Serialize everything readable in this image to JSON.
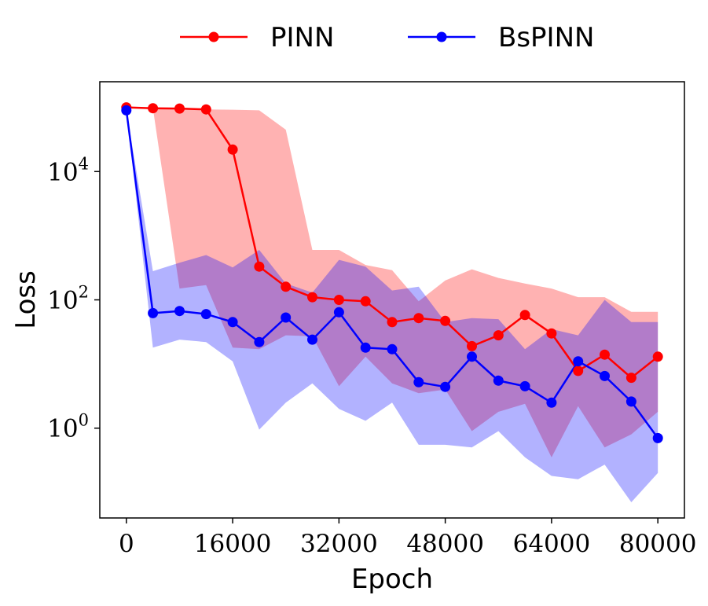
{
  "chart_data": {
    "type": "line",
    "xlabel": "Epoch",
    "ylabel": "Loss",
    "yscale": "log",
    "xlim": [
      -4000,
      84000
    ],
    "ylim_log10": [
      -1.4,
      5.4
    ],
    "x": [
      0,
      4000,
      8000,
      12000,
      16000,
      20000,
      24000,
      28000,
      32000,
      36000,
      40000,
      44000,
      48000,
      52000,
      56000,
      60000,
      64000,
      68000,
      72000,
      76000,
      80000
    ],
    "xticks": [
      {
        "value": 0,
        "label": "0"
      },
      {
        "value": 16000,
        "label": "16000"
      },
      {
        "value": 32000,
        "label": "32000"
      },
      {
        "value": 48000,
        "label": "48000"
      },
      {
        "value": 64000,
        "label": "64000"
      },
      {
        "value": 80000,
        "label": "80000"
      }
    ],
    "yticks": [
      {
        "exp": 0,
        "base": "10",
        "sup": "0"
      },
      {
        "exp": 2,
        "base": "10",
        "sup": "2"
      },
      {
        "exp": 4,
        "base": "10",
        "sup": "4"
      }
    ],
    "legend": {
      "placement": "top-center, outside plot"
    },
    "series": [
      {
        "name": "PINN",
        "color": "#ff0000",
        "band_color": "#ff0000",
        "band_opacity": 0.3,
        "values": [
          100000,
          97000,
          96000,
          93000,
          22000,
          330,
          160,
          110,
          100,
          95,
          45,
          52,
          47,
          19,
          28,
          58,
          30,
          7.8,
          14,
          6.1,
          13
        ],
        "lower": [
          100000,
          97000,
          150,
          170,
          18,
          17,
          28,
          27,
          4.5,
          13,
          5,
          3.5,
          4,
          0.9,
          1.8,
          2.4,
          0.35,
          2.2,
          0.5,
          0.8,
          1.8
        ],
        "upper": [
          100000,
          97000,
          96000,
          93000,
          92000,
          90000,
          45000,
          600,
          600,
          350,
          290,
          95,
          200,
          300,
          220,
          180,
          150,
          110,
          110,
          65,
          65
        ]
      },
      {
        "name": "BsPINN",
        "color": "#0000ff",
        "band_color": "#0000ff",
        "band_opacity": 0.3,
        "values": [
          90000,
          62,
          67,
          60,
          45,
          22,
          53,
          24,
          64,
          18,
          17,
          5.2,
          4.4,
          13,
          5.5,
          4.5,
          2.5,
          11,
          6.5,
          2.6,
          0.7
        ],
        "lower": [
          90000,
          18,
          24,
          22,
          11,
          0.95,
          2.5,
          5,
          2,
          1.3,
          2.5,
          0.55,
          0.55,
          0.5,
          0.9,
          0.35,
          0.18,
          0.16,
          0.27,
          0.07,
          0.2
        ],
        "upper": [
          90000,
          280,
          380,
          500,
          320,
          600,
          180,
          130,
          420,
          330,
          140,
          160,
          45,
          52,
          50,
          17,
          35,
          28,
          100,
          45,
          45
        ]
      }
    ]
  }
}
